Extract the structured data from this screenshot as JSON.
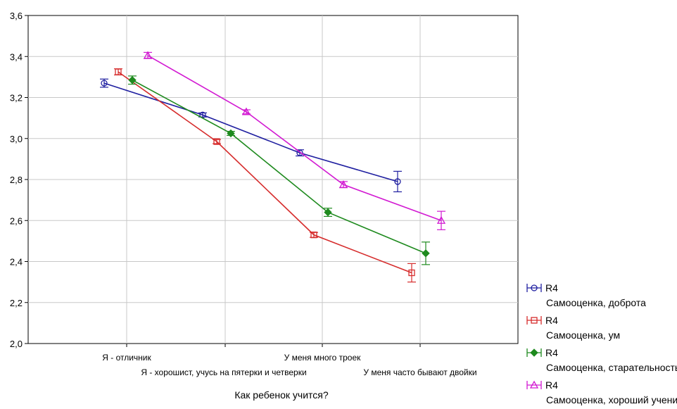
{
  "chart_data": {
    "type": "line",
    "title": "",
    "xlabel": "Как ребенок учится?",
    "ylabel": "",
    "ylim": [
      2.0,
      3.6
    ],
    "yticks": [
      "2,0",
      "2,2",
      "2,4",
      "2,6",
      "2,8",
      "3,0",
      "3,2",
      "3,4",
      "3,6"
    ],
    "grid": true,
    "legend_position": "right",
    "categories": [
      "Я - отличник",
      "Я - хорошист, учусь на пятерки и четверки",
      "У меня много троек",
      "У меня часто бывают двойки"
    ],
    "series": [
      {
        "name": "R4",
        "subname": "Самооценка, доброта",
        "color": "#1f1fa0",
        "marker": "circle",
        "values": [
          3.27,
          3.115,
          2.93,
          2.79
        ],
        "errors": [
          0.02,
          0.01,
          0.015,
          0.05
        ]
      },
      {
        "name": "R4",
        "subname": "Самооценка, ум",
        "color": "#d62c2c",
        "marker": "square",
        "values": [
          3.325,
          2.985,
          2.53,
          2.345
        ],
        "errors": [
          0.015,
          0.01,
          0.012,
          0.045
        ]
      },
      {
        "name": "R4",
        "subname": "Самооценка, старательность",
        "color": "#1e8a1e",
        "marker": "diamond",
        "values": [
          3.285,
          3.025,
          2.64,
          2.44
        ],
        "errors": [
          0.02,
          0.01,
          0.02,
          0.055
        ]
      },
      {
        "name": "R4",
        "subname": "Самооценка, хороший ученик",
        "color": "#d21ad2",
        "marker": "triangle",
        "values": [
          3.405,
          3.13,
          2.775,
          2.6
        ],
        "errors": [
          0.015,
          0.01,
          0.015,
          0.045
        ]
      }
    ]
  }
}
